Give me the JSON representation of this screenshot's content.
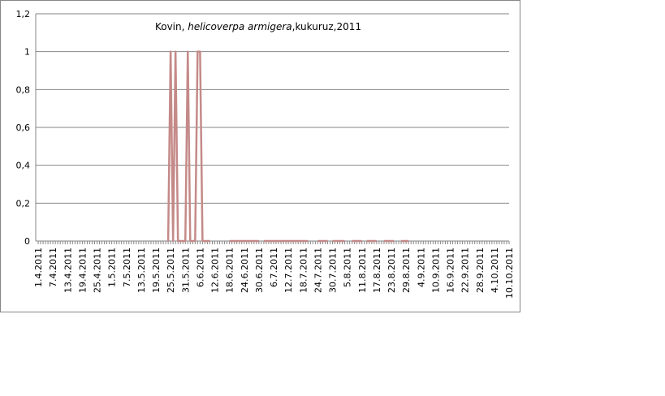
{
  "chart_data": {
    "type": "line",
    "title": {
      "before": "Kovin, ",
      "italic": "helicoverpa armigera",
      "after": ",kukuruz,2011"
    },
    "categories": [
      "1.4.2011",
      null,
      null,
      null,
      null,
      null,
      "7.4.2011",
      null,
      null,
      null,
      null,
      null,
      "13.4.2011",
      null,
      null,
      null,
      null,
      null,
      "19.4.2011",
      null,
      null,
      null,
      null,
      null,
      "25.4.2011",
      null,
      null,
      null,
      null,
      null,
      "1.5.2011",
      null,
      null,
      null,
      null,
      null,
      "7.5.2011",
      null,
      null,
      null,
      null,
      null,
      "13.5.2011",
      null,
      null,
      null,
      null,
      null,
      "19.5.2011",
      null,
      null,
      null,
      null,
      null,
      "25.5.2011",
      null,
      null,
      null,
      null,
      null,
      "31.5.2011",
      null,
      null,
      null,
      null,
      null,
      "6.6.2011",
      null,
      null,
      null,
      null,
      null,
      "12.6.2011",
      null,
      null,
      null,
      null,
      null,
      "18.6.2011",
      null,
      null,
      null,
      null,
      null,
      "24.6.2011",
      null,
      null,
      null,
      null,
      null,
      "30.6.2011",
      null,
      null,
      null,
      null,
      null,
      "6.7.2011",
      null,
      null,
      null,
      null,
      null,
      "12.7.2011",
      null,
      null,
      null,
      null,
      null,
      "18.7.2011",
      null,
      null,
      null,
      null,
      null,
      "24.7.2011",
      null,
      null,
      null,
      null,
      null,
      "30.7.2011",
      null,
      null,
      null,
      null,
      null,
      "5.8.2011",
      null,
      null,
      null,
      null,
      null,
      "11.8.2011",
      null,
      null,
      null,
      null,
      null,
      "17.8.2011",
      null,
      null,
      null,
      null,
      null,
      "23.8.2011",
      null,
      null,
      null,
      null,
      null,
      "29.8.2011",
      null,
      null,
      null,
      null,
      null,
      "4.9.2011",
      null,
      null,
      null,
      null,
      null,
      "10.9.2011",
      null,
      null,
      null,
      null,
      null,
      "16.9.2011",
      null,
      null,
      null,
      null,
      null,
      "22.9.2011",
      null,
      null,
      null,
      null,
      null,
      "28.9.2011",
      null,
      null,
      null,
      null,
      null,
      "4.10.2011",
      null,
      null,
      null,
      null,
      null,
      "10.10.2011"
    ],
    "series": [
      {
        "color": "#c48a88",
        "values": [
          null,
          null,
          null,
          null,
          null,
          null,
          null,
          null,
          null,
          null,
          null,
          null,
          null,
          null,
          null,
          null,
          null,
          null,
          null,
          null,
          null,
          null,
          null,
          null,
          null,
          null,
          null,
          null,
          null,
          null,
          null,
          null,
          null,
          null,
          null,
          null,
          null,
          null,
          null,
          null,
          null,
          null,
          null,
          null,
          null,
          null,
          null,
          null,
          null,
          null,
          null,
          null,
          null,
          0,
          1,
          0,
          1,
          0,
          0,
          0,
          0,
          1,
          0,
          0,
          0,
          1,
          1,
          0,
          0,
          0,
          0,
          null,
          null,
          null,
          null,
          null,
          null,
          null,
          0,
          0,
          0,
          0,
          0,
          0,
          0,
          0,
          0,
          0,
          0,
          0,
          0,
          null,
          0,
          0,
          0,
          0,
          0,
          0,
          0,
          0,
          0,
          0,
          0,
          0,
          0,
          0,
          0,
          0,
          0,
          0,
          0,
          null,
          null,
          null,
          0,
          0,
          0,
          0,
          0,
          null,
          0,
          0,
          0,
          0,
          0,
          0,
          null,
          null,
          0,
          0,
          0,
          0,
          0,
          null,
          0,
          0,
          0,
          0,
          0,
          null,
          null,
          0,
          0,
          0,
          0,
          0,
          null,
          null,
          0,
          0,
          0,
          0,
          null,
          null,
          null,
          null,
          null,
          null,
          null,
          null,
          null,
          null,
          null,
          null,
          null,
          null,
          null,
          null,
          null,
          null,
          null,
          null,
          null,
          null,
          null,
          null,
          null,
          null,
          null,
          null,
          null,
          null,
          null,
          null,
          null,
          null,
          null,
          null,
          null,
          null,
          null,
          null,
          null
        ]
      }
    ],
    "ylim": [
      0,
      1.2
    ],
    "yticks": [
      0,
      {
        "value": 0.2,
        "label": "0,2"
      },
      {
        "value": 0.4,
        "label": "0,4"
      },
      {
        "value": 0.6,
        "label": "0,6"
      },
      {
        "value": 0.8,
        "label": "0,8"
      },
      1,
      {
        "value": 1.2,
        "label": "1,2"
      }
    ],
    "grid": true
  }
}
